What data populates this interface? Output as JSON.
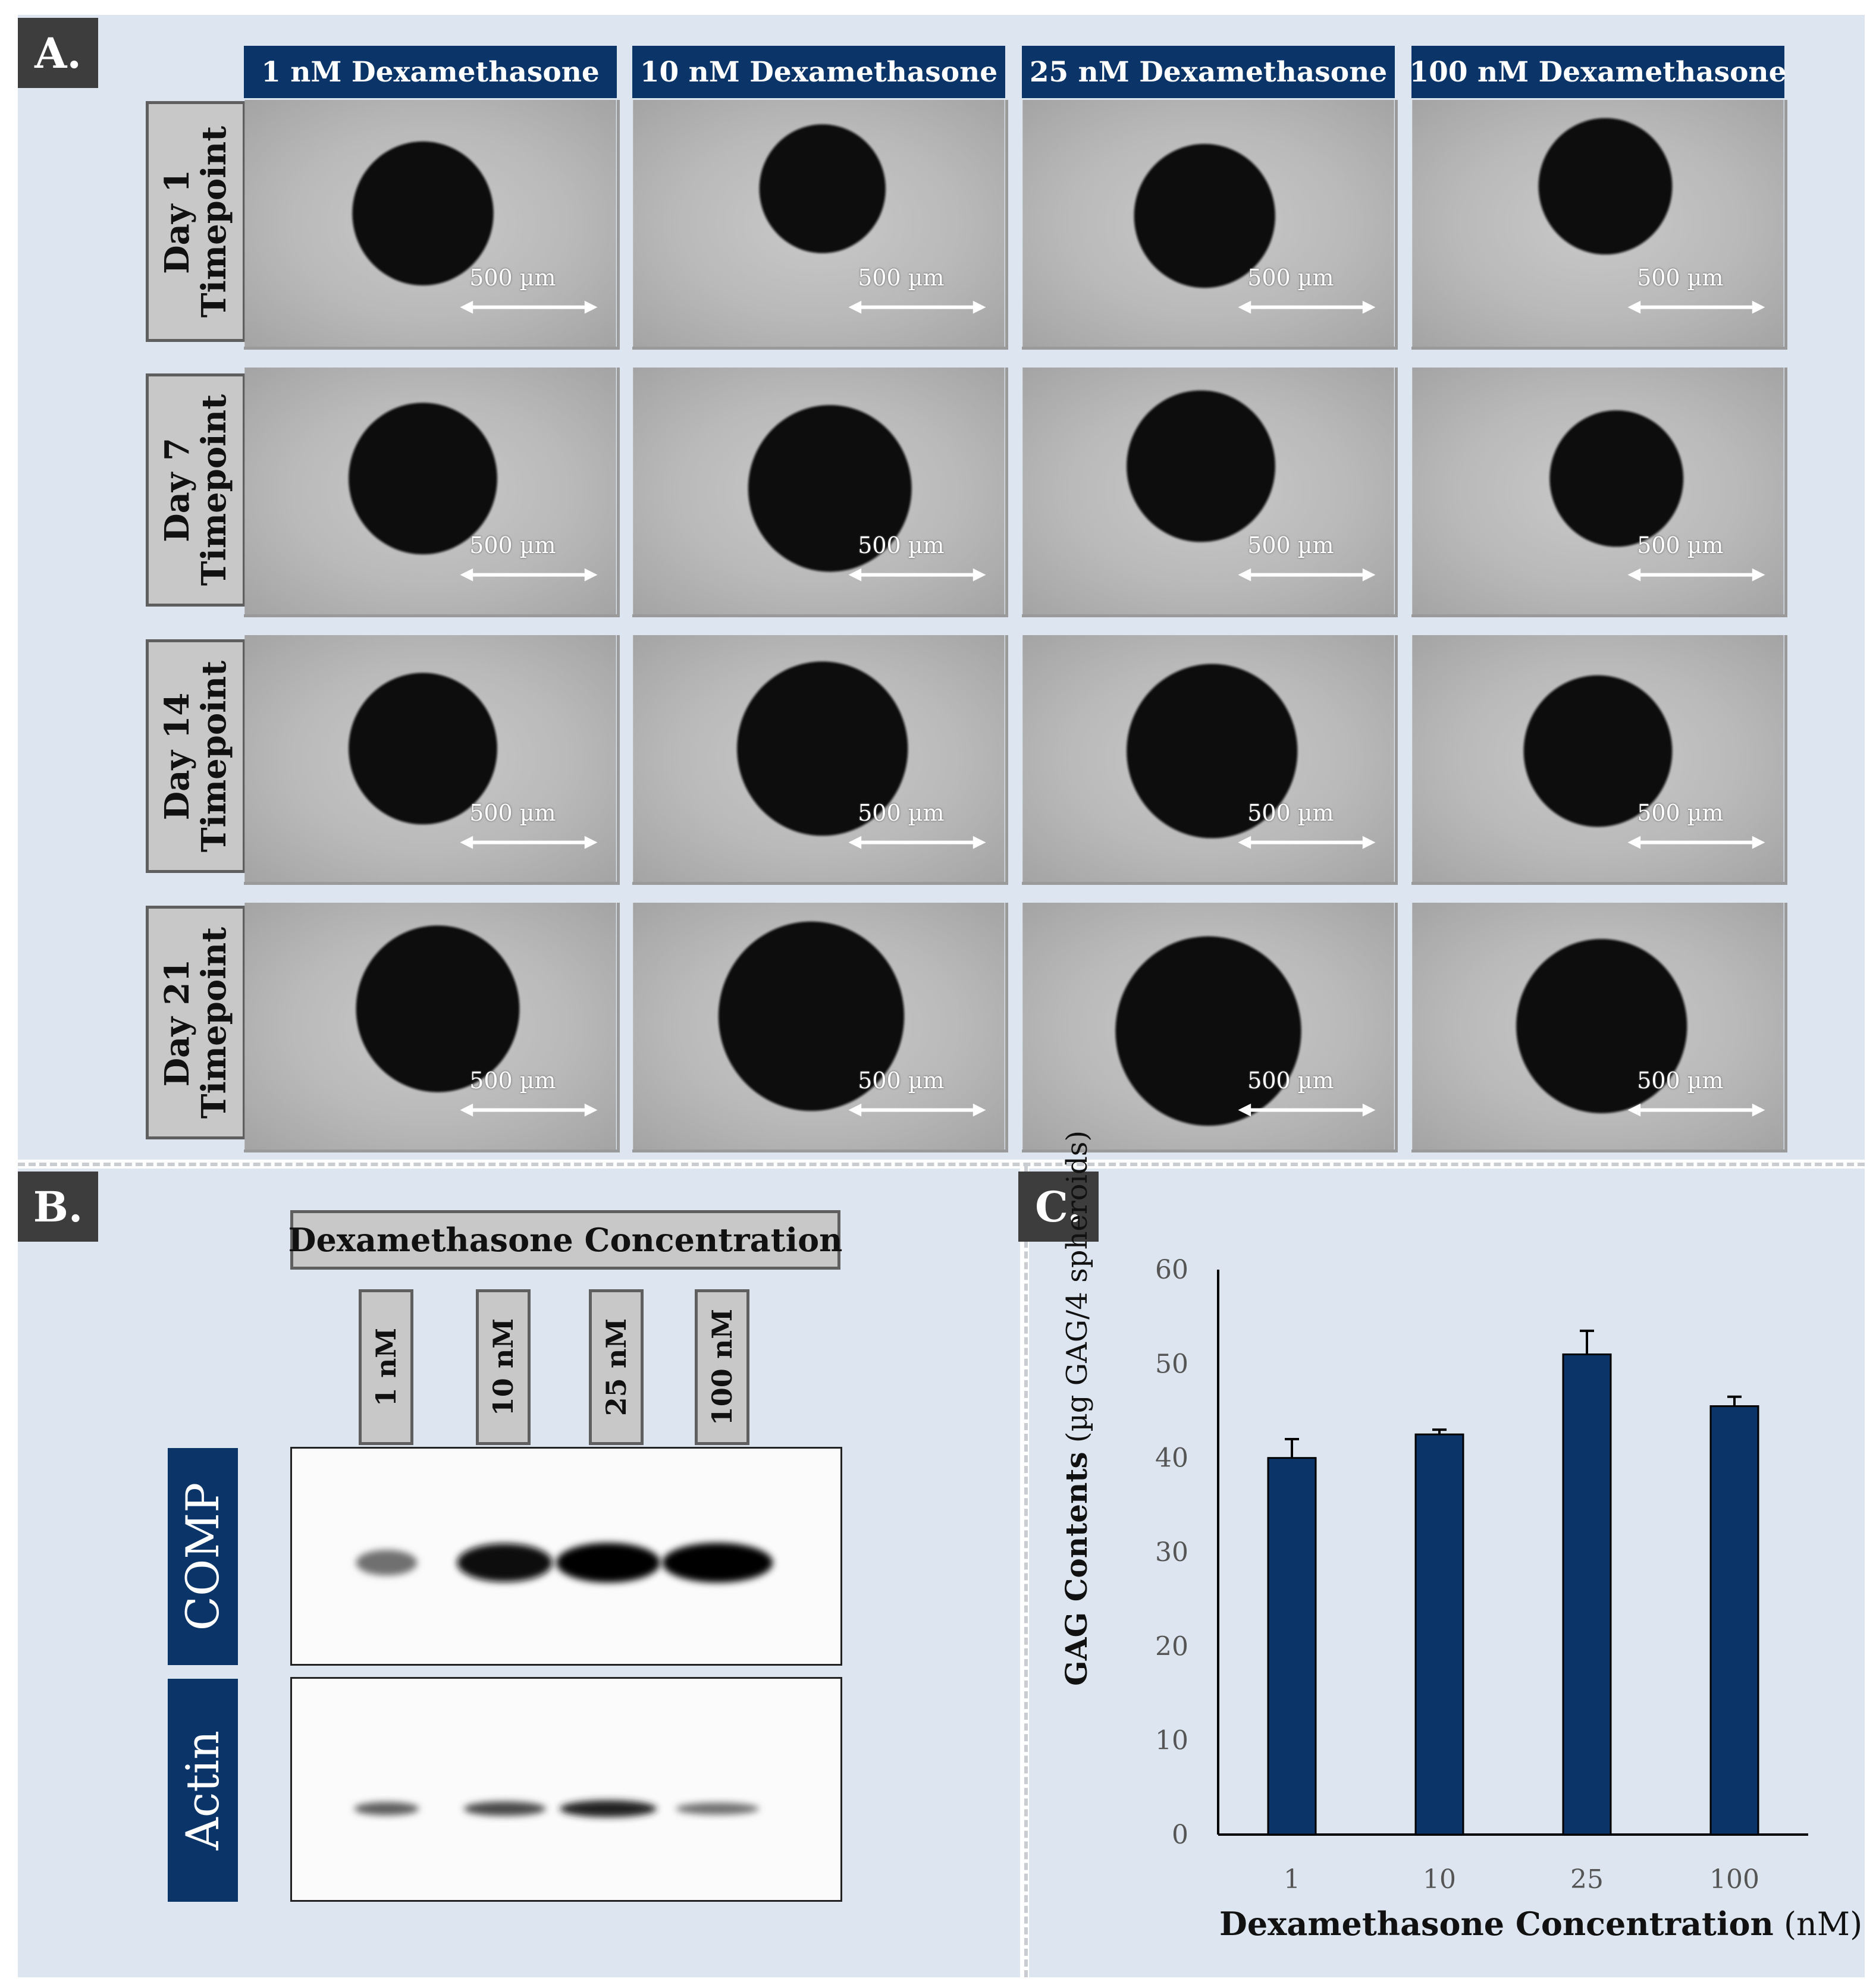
{
  "panel_a": {
    "letter": "A.",
    "columns": [
      "1 nM Dexamethasone",
      "10 nM Dexamethasone",
      "25 nM Dexamethasone",
      "100 nM Dexamethasone"
    ],
    "rows": [
      {
        "line1": "Day 1",
        "line2": "Timepoint"
      },
      {
        "line1": "Day 7",
        "line2": "Timepoint"
      },
      {
        "line1": "Day 14",
        "line2": "Timepoint"
      },
      {
        "line1": "Day 21",
        "line2": "Timepoint"
      }
    ],
    "scale_bar_label": "500 µm"
  },
  "panel_b": {
    "letter": "B.",
    "header": "Dexamethasone Concentration",
    "lanes": [
      "1 nM",
      "10 nM",
      "25 nM",
      "100 nM"
    ],
    "proteins": [
      "COMP",
      "Actin"
    ],
    "band_intensity": {
      "COMP": [
        0.45,
        0.95,
        1.0,
        1.0
      ],
      "Actin": [
        0.55,
        0.65,
        0.85,
        0.45
      ]
    }
  },
  "panel_c": {
    "letter": "C.",
    "chart_data": {
      "type": "bar",
      "categories": [
        "1",
        "10",
        "25",
        "100"
      ],
      "values": [
        40,
        42.5,
        51,
        45.5
      ],
      "errors": [
        2,
        0.5,
        2.5,
        1
      ],
      "ylabel_bold": "GAG Contents",
      "ylabel_rest": "(µg GAG/4 spheroids)",
      "xlabel_bold": "Dexamethasone Concentration",
      "xlabel_rest": "(nM)",
      "ylim": [
        0,
        60
      ],
      "yticks": [
        0,
        10,
        20,
        30,
        40,
        50,
        60
      ],
      "grid": false,
      "bar_color": "#0b3568"
    }
  },
  "colors": {
    "panel_background": "#dde6f0",
    "header_navy": "#0b3568",
    "label_gray": "#c8c8c8",
    "letter_box": "#3d3d3d"
  }
}
